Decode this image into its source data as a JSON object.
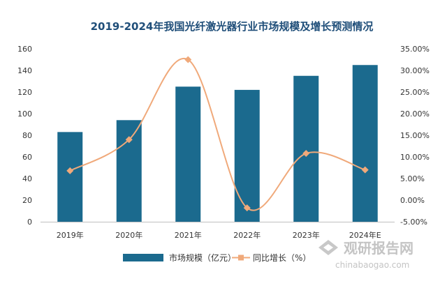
{
  "chart_data": {
    "type": "bar",
    "title": "2019-2024年我国光纤激光器行业市场规模及增长预测情况",
    "categories": [
      "2019年",
      "2020年",
      "2021年",
      "2022年",
      "2023年",
      "2024年E"
    ],
    "series": [
      {
        "name": "市场规模（亿元）",
        "type": "bar",
        "axis": "left",
        "values": [
          83,
          94,
          125,
          122,
          135,
          145
        ],
        "color": "#1b6a8e"
      },
      {
        "name": "同比增长（%）",
        "type": "line",
        "axis": "right",
        "values": [
          6.8,
          14.0,
          32.5,
          -1.8,
          10.8,
          7.0
        ],
        "unit": "%",
        "color": "#f0a97a"
      }
    ],
    "y_left": {
      "ylim": [
        0,
        160
      ],
      "ticks": [
        "0",
        "20",
        "40",
        "60",
        "80",
        "100",
        "120",
        "140",
        "160"
      ]
    },
    "y_right": {
      "ylim": [
        -5,
        35
      ],
      "ticks": [
        "-5.00%",
        "0.00%",
        "5.00%",
        "10.00%",
        "15.00%",
        "20.00%",
        "25.00%",
        "30.00%",
        "35.00%"
      ]
    },
    "grid": false,
    "legend": "bottom"
  },
  "watermark": {
    "name": "观研报告网",
    "url": "chinabaogao.com"
  }
}
